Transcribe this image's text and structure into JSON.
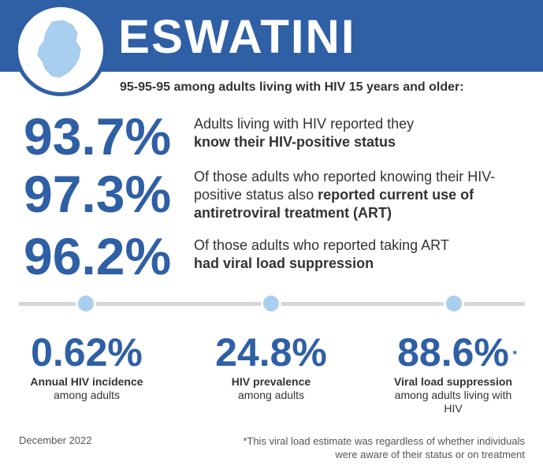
{
  "header": {
    "country": "ESWATINI",
    "map_icon": "eswatini-map-icon"
  },
  "subtitle": "95-95-95 among adults living with HIV 15 years and older:",
  "cascade": [
    {
      "value": "93.7%",
      "text_plain": "Adults living with HIV reported they ",
      "text_bold": "know their HIV-positive status"
    },
    {
      "value": "97.3%",
      "text_plain": "Of those adults who reported knowing their HIV-positive status also ",
      "text_bold": "reported current use of antiretroviral treatment (ART)"
    },
    {
      "value": "96.2%",
      "text_plain": "Of those adults who reported taking ART ",
      "text_bold": "had viral load suppression"
    }
  ],
  "stats": [
    {
      "value": "0.62%",
      "label": "Annual HIV incidence",
      "sub": "among adults",
      "marker": ""
    },
    {
      "value": "24.8%",
      "label": "HIV prevalence",
      "sub": "among adults",
      "marker": ""
    },
    {
      "value": "88.6%",
      "label": "Viral load suppression",
      "sub": "among adults living with HIV",
      "marker": "*"
    }
  ],
  "footer": {
    "date": "December 2022",
    "footnote": "*This viral load estimate was regardless of whether individuals were aware of their status or on treatment"
  },
  "colors": {
    "brand_blue": "#2f5fa5",
    "light_blue": "#a9cff0",
    "timeline_grey": "#d6d6d6"
  }
}
